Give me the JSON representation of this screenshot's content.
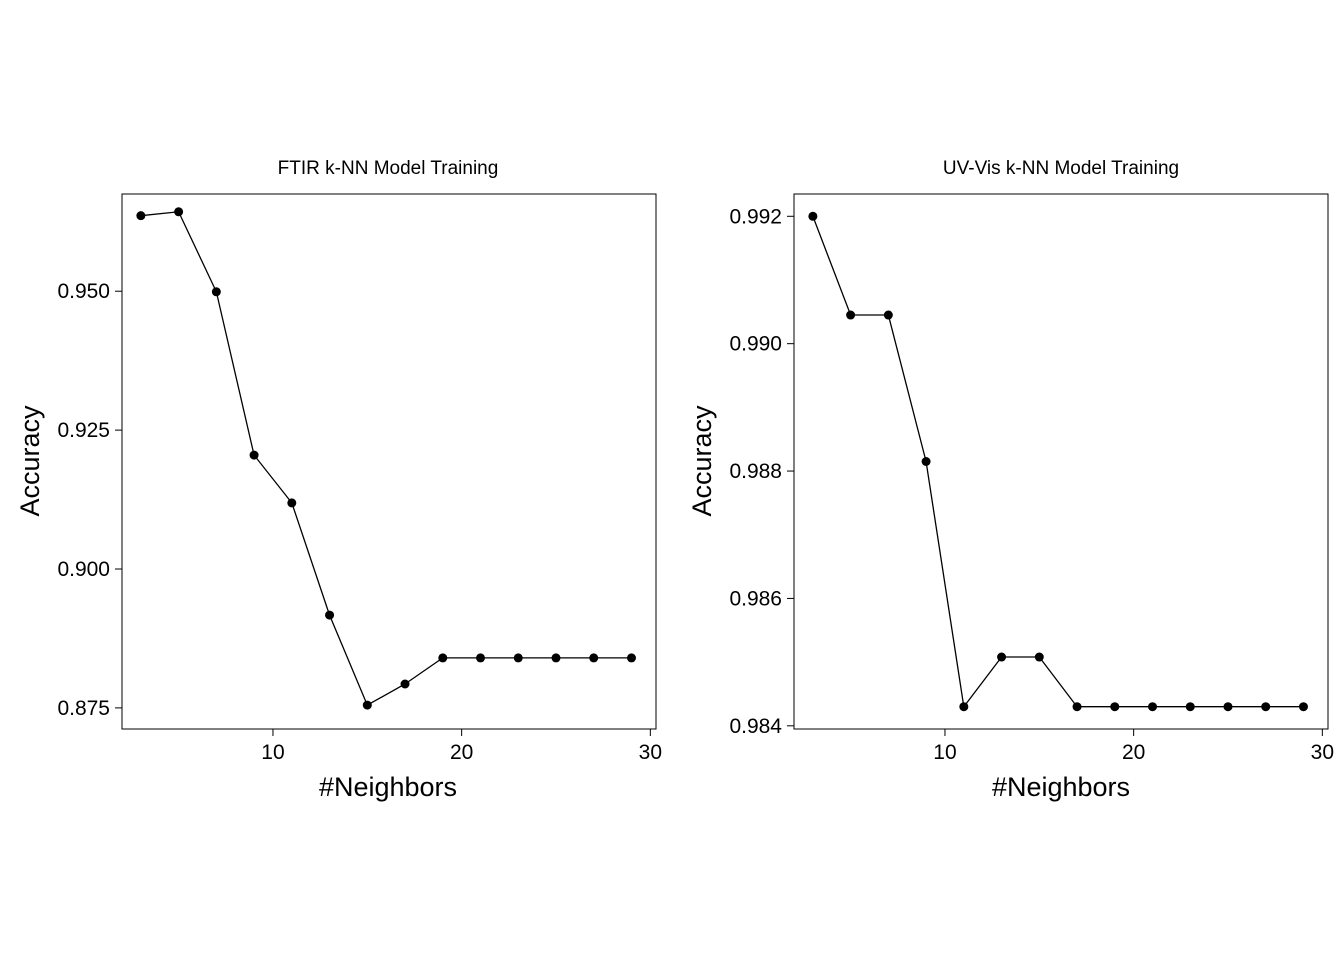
{
  "chart_data": [
    {
      "type": "line",
      "title": "FTIR k-NN Model Training",
      "xlabel": "#Neighbors",
      "ylabel": "Accuracy",
      "xlim": [
        2,
        30.3
      ],
      "ylim": [
        0.8712,
        0.9675
      ],
      "xticks": [
        10,
        20,
        30
      ],
      "yticks": [
        0.875,
        0.9,
        0.925,
        0.95
      ],
      "ytick_labels": [
        "0.875",
        "0.900",
        "0.925",
        "0.950"
      ],
      "grid": false,
      "series": [
        {
          "x": [
            3,
            5,
            7,
            9,
            11,
            13,
            15,
            17,
            19,
            21,
            23,
            25,
            27,
            29
          ],
          "values": [
            0.9636,
            0.9643,
            0.9499,
            0.9205,
            0.9119,
            0.8917,
            0.8755,
            0.8793,
            0.884,
            0.884,
            0.884,
            0.884,
            0.884,
            0.884
          ]
        }
      ]
    },
    {
      "type": "line",
      "title": "UV-Vis k-NN Model Training",
      "xlabel": "#Neighbors",
      "ylabel": "Accuracy",
      "xlim": [
        2,
        30.3
      ],
      "ylim": [
        0.98395,
        0.99235
      ],
      "xticks": [
        10,
        20,
        30
      ],
      "yticks": [
        0.984,
        0.986,
        0.988,
        0.99,
        0.992
      ],
      "ytick_labels": [
        "0.984",
        "0.986",
        "0.988",
        "0.990",
        "0.992"
      ],
      "grid": false,
      "series": [
        {
          "x": [
            3,
            5,
            7,
            9,
            11,
            13,
            15,
            17,
            19,
            21,
            23,
            25,
            27,
            29
          ],
          "values": [
            0.992,
            0.99045,
            0.99045,
            0.98815,
            0.9843,
            0.98508,
            0.98508,
            0.9843,
            0.9843,
            0.9843,
            0.9843,
            0.9843,
            0.9843,
            0.9843
          ]
        }
      ]
    }
  ]
}
